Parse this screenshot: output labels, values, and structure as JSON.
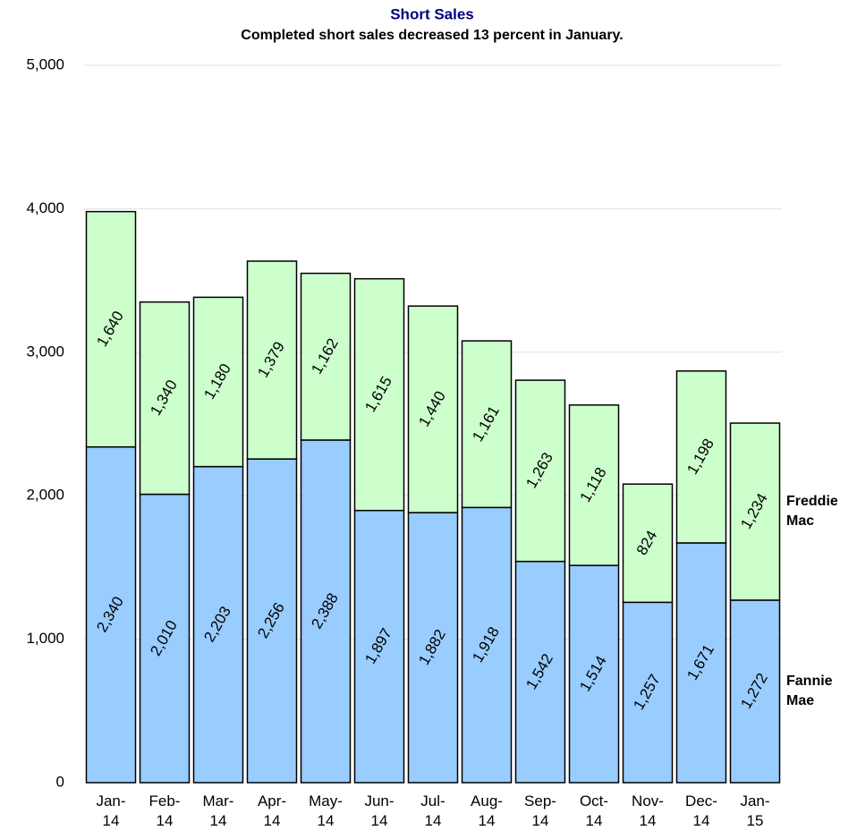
{
  "chart_data": {
    "type": "stacked_bar",
    "title": "Short Sales",
    "subtitle": "Completed short sales decreased 13 percent in January.",
    "categories": [
      "Jan-14",
      "Feb-14",
      "Mar-14",
      "Apr-14",
      "May-14",
      "Jun-14",
      "Jul-14",
      "Aug-14",
      "Sep-14",
      "Oct-14",
      "Nov-14",
      "Dec-14",
      "Jan-15"
    ],
    "series": [
      {
        "name": "Fannie Mae",
        "color": "#99ccff",
        "values": [
          2340,
          2010,
          2203,
          2256,
          2388,
          1897,
          1882,
          1918,
          1542,
          1514,
          1257,
          1671,
          1272
        ],
        "value_labels": [
          "2,340",
          "2,010",
          "2,203",
          "2,256",
          "2,388",
          "1,897",
          "1,882",
          "1,918",
          "1,542",
          "1,514",
          "1,257",
          "1,671",
          "1,272"
        ]
      },
      {
        "name": "Freddie Mac",
        "color": "#ccffcc",
        "values": [
          1640,
          1340,
          1180,
          1379,
          1162,
          1615,
          1440,
          1161,
          1263,
          1118,
          824,
          1198,
          1234
        ],
        "value_labels": [
          "1,640",
          "1,340",
          "1,180",
          "1,379",
          "1,162",
          "1,615",
          "1,440",
          "1,161",
          "1,263",
          "1,118",
          "824",
          "1,198",
          "1,234"
        ]
      }
    ],
    "ylim": [
      0,
      5000
    ],
    "yticks": [
      0,
      {
        "value": 1000,
        "label": "1,000"
      },
      {
        "value": 2000,
        "label": "2,000"
      },
      {
        "value": 3000,
        "label": "3,000"
      },
      {
        "value": 4000,
        "label": "4,000"
      },
      {
        "value": 5000,
        "label": "5,000"
      }
    ],
    "grid": true
  }
}
